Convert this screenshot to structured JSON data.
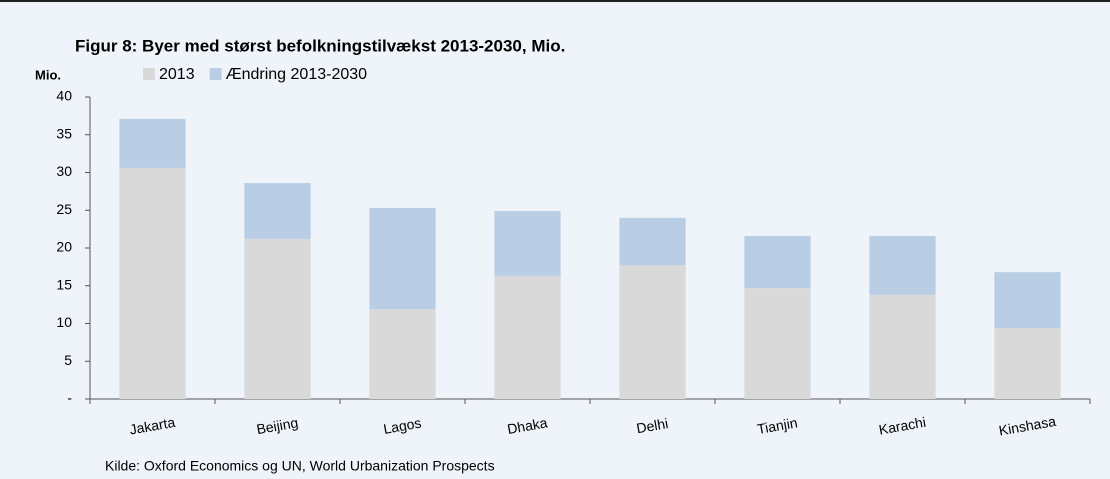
{
  "chart_data": {
    "type": "stacked_bar",
    "title": "Figur 8: Byer med størst befolkningstilvækst 2013-2030, Mio.",
    "y_label": "Mio.",
    "source": "Kilde: Oxford Economics og UN, World Urbanization Prospects",
    "categories": [
      "Jakarta",
      "Beijing",
      "Lagos",
      "Dhaka",
      "Delhi",
      "Tianjin",
      "Karachi",
      "Kinshasa"
    ],
    "series": [
      {
        "name": "2013",
        "color": "#d9d9d9",
        "values": [
          30.6,
          21.2,
          11.9,
          16.3,
          17.7,
          14.7,
          13.8,
          9.4
        ]
      },
      {
        "name": "Ændring 2013-2030",
        "color": "#b9cde5",
        "values": [
          6.5,
          7.4,
          13.4,
          8.6,
          6.3,
          6.9,
          7.8,
          7.4
        ]
      }
    ],
    "ylim": [
      0,
      40
    ],
    "yticks": [
      {
        "value": 0,
        "label": "-"
      },
      5,
      10,
      15,
      20,
      25,
      30,
      35,
      40
    ],
    "legend": "top-left"
  }
}
